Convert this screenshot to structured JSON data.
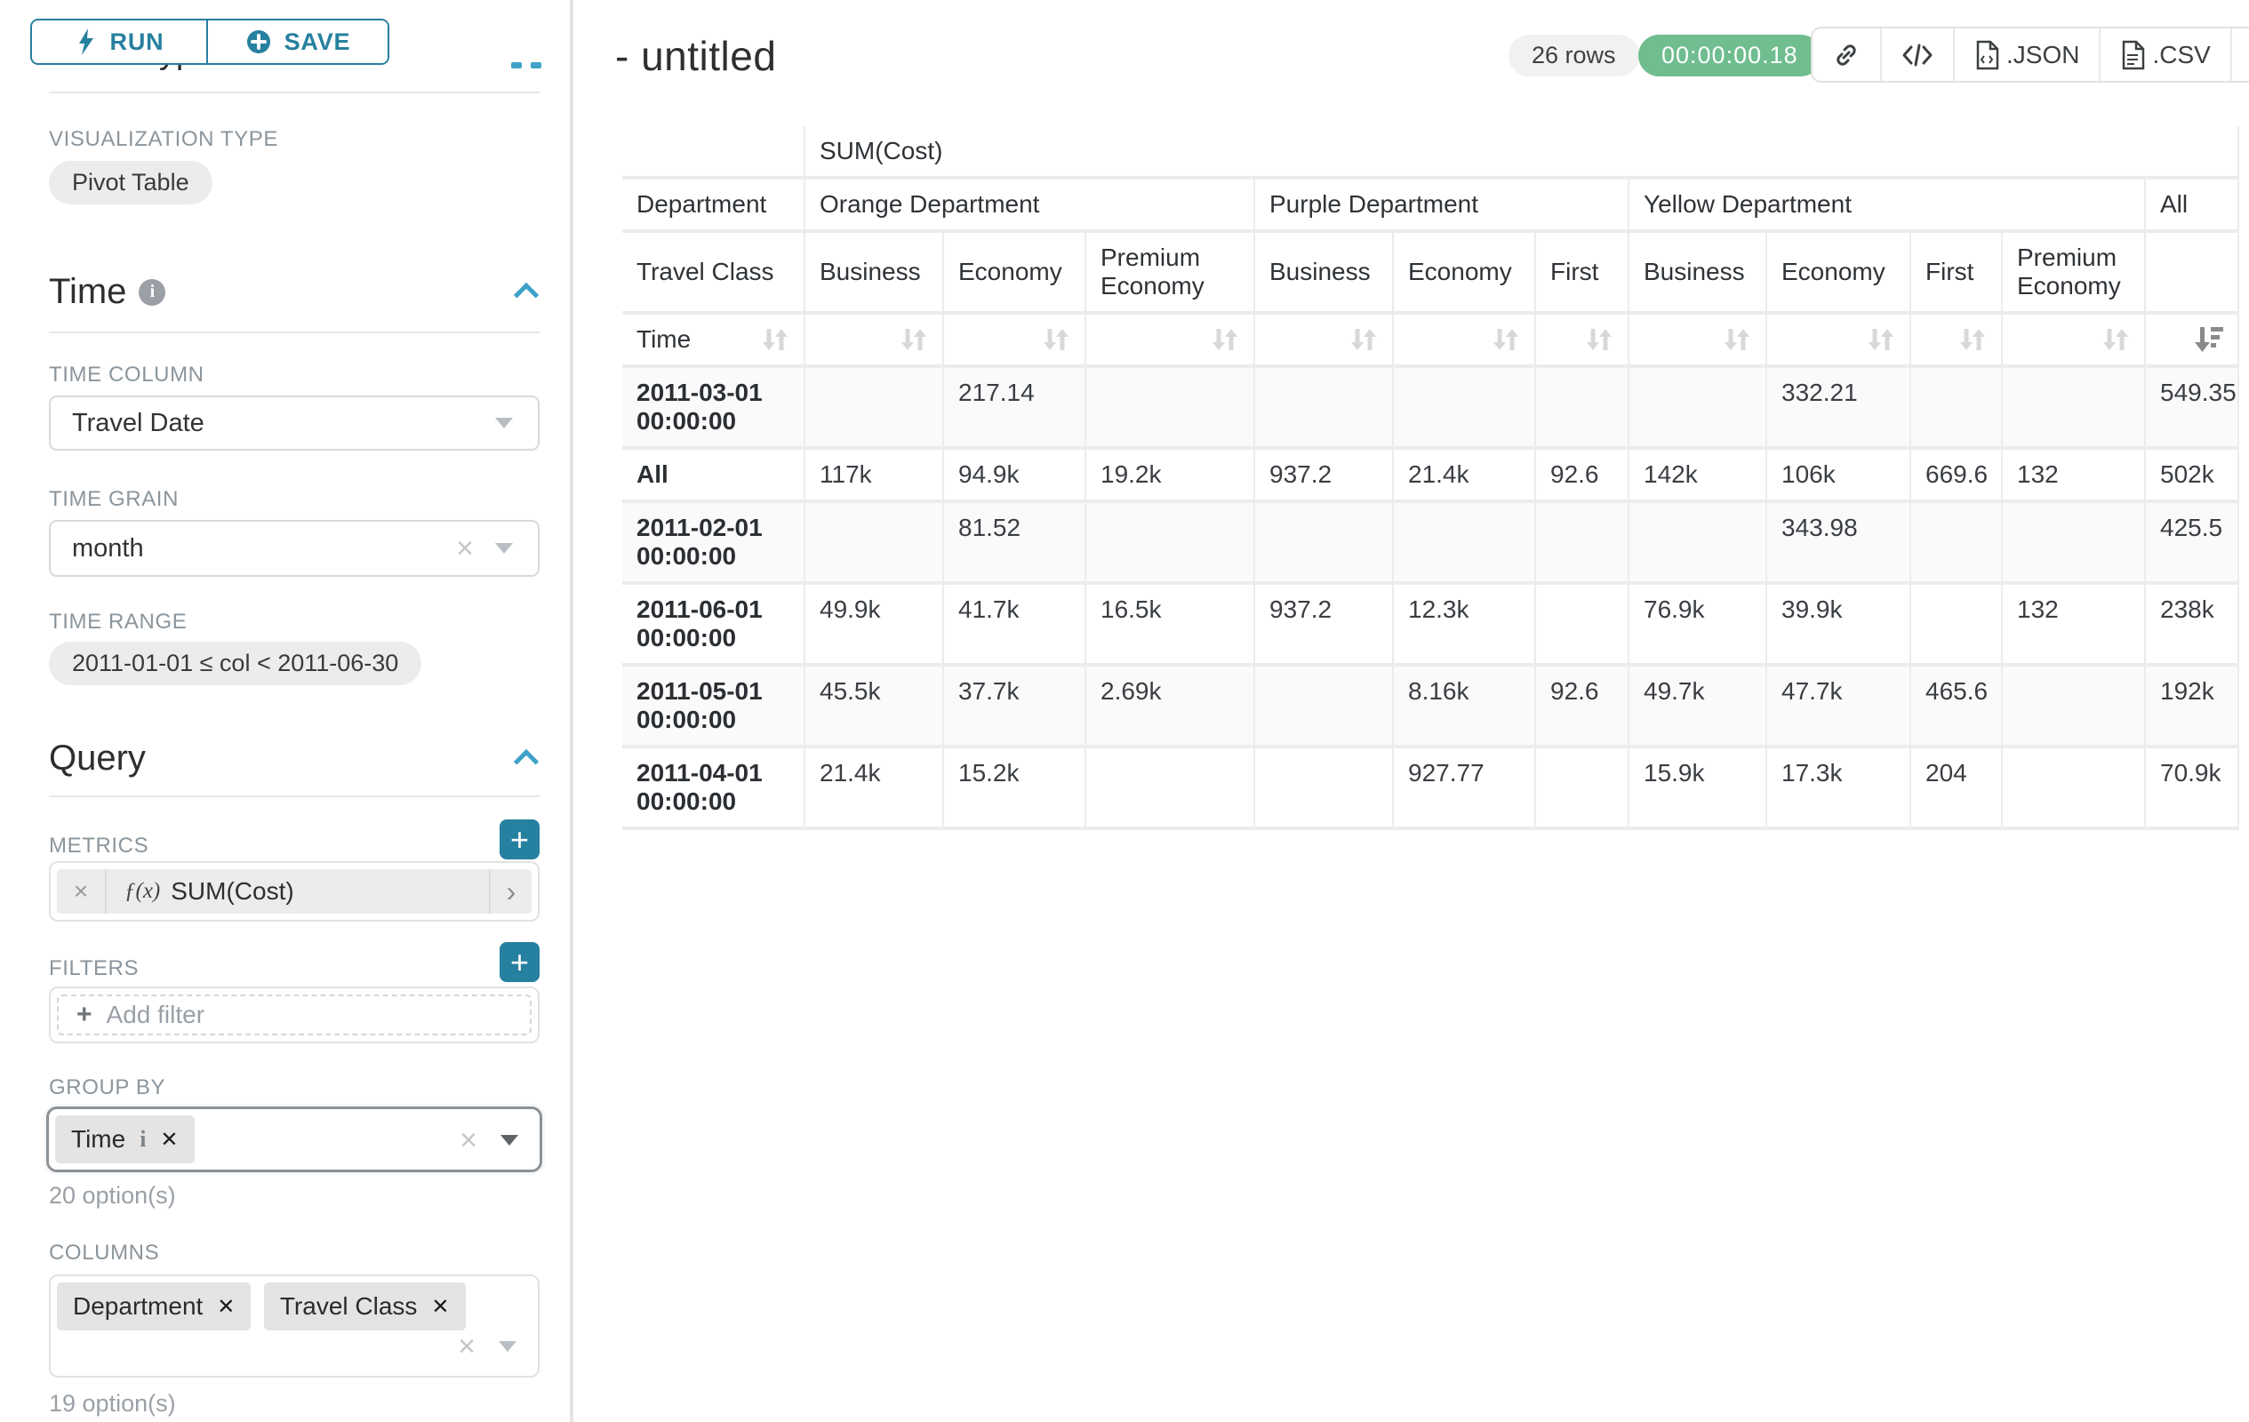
{
  "colors": {
    "accent": "#26809f",
    "caret": "#3ea2c8",
    "success_badge": "#70bd8f"
  },
  "sidebar": {
    "run_label": "RUN",
    "save_label": "SAVE",
    "chart_type_heading": "Chart Type",
    "visualization_type_label": "VISUALIZATION TYPE",
    "visualization_type_value": "Pivot Table",
    "time_section_title": "Time",
    "time_column_label": "TIME COLUMN",
    "time_column_value": "Travel Date",
    "time_grain_label": "TIME GRAIN",
    "time_grain_value": "month",
    "time_range_label": "TIME RANGE",
    "time_range_value": "2011-01-01 ≤ col < 2011-06-30",
    "query_section_title": "Query",
    "metrics_label": "METRICS",
    "metric_fn": "ƒ(x)",
    "metric_name": "SUM(Cost)",
    "filters_label": "FILTERS",
    "add_filter_label": "Add filter",
    "group_by_label": "GROUP BY",
    "group_by_tag": "Time",
    "group_by_options": "20 option(s)",
    "columns_label": "COLUMNS",
    "columns_tags": [
      "Department",
      "Travel Class"
    ],
    "columns_options": "19 option(s)"
  },
  "main": {
    "title": "- untitled",
    "rows_badge": "26 rows",
    "duration_badge": "00:00:00.18",
    "export_json_label": ".JSON",
    "export_csv_label": ".CSV"
  },
  "pivot": {
    "metric_header": "SUM(Cost)",
    "col_dimension": "Department",
    "col_dimension_2": "Travel Class",
    "row_dimension": "Time",
    "groups": [
      {
        "label": "Orange Department",
        "span": 3
      },
      {
        "label": "Purple Department",
        "span": 3
      },
      {
        "label": "Yellow Department",
        "span": 4
      },
      {
        "label": "All",
        "span": 1
      }
    ],
    "leaf_columns": [
      "Business",
      "Economy",
      "Premium Economy",
      "Business",
      "Economy",
      "First",
      "Business",
      "Economy",
      "First",
      "Premium Economy"
    ],
    "rows": [
      {
        "label": "2011-03-01 00:00:00",
        "values": [
          "",
          "217.14",
          "",
          "",
          "",
          "",
          "",
          "332.21",
          "",
          "",
          "549.35"
        ]
      },
      {
        "label": "All",
        "values": [
          "117k",
          "94.9k",
          "19.2k",
          "937.2",
          "21.4k",
          "92.6",
          "142k",
          "106k",
          "669.6",
          "132",
          "502k"
        ]
      },
      {
        "label": "2011-02-01 00:00:00",
        "values": [
          "",
          "81.52",
          "",
          "",
          "",
          "",
          "",
          "343.98",
          "",
          "",
          "425.5"
        ]
      },
      {
        "label": "2011-06-01 00:00:00",
        "values": [
          "49.9k",
          "41.7k",
          "16.5k",
          "937.2",
          "12.3k",
          "",
          "76.9k",
          "39.9k",
          "",
          "132",
          "238k"
        ]
      },
      {
        "label": "2011-05-01 00:00:00",
        "values": [
          "45.5k",
          "37.7k",
          "2.69k",
          "",
          "8.16k",
          "92.6",
          "49.7k",
          "47.7k",
          "465.6",
          "",
          "192k"
        ]
      },
      {
        "label": "2011-04-01 00:00:00",
        "values": [
          "21.4k",
          "15.2k",
          "",
          "",
          "927.77",
          "",
          "15.9k",
          "17.3k",
          "204",
          "",
          "70.9k"
        ]
      }
    ]
  }
}
